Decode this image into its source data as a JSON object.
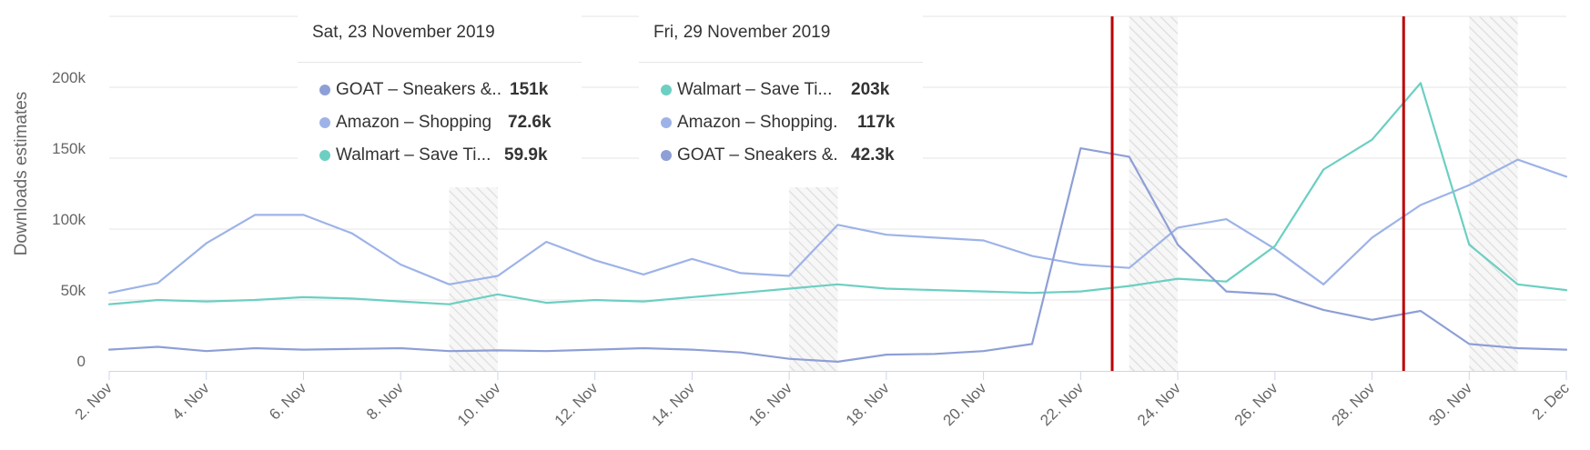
{
  "chart_data": {
    "type": "line",
    "title": "",
    "ylabel": "Downloads estimates",
    "xlabel": "",
    "x": [
      "2019-11-02",
      "2019-11-03",
      "2019-11-04",
      "2019-11-05",
      "2019-11-06",
      "2019-11-07",
      "2019-11-08",
      "2019-11-09",
      "2019-11-10",
      "2019-11-11",
      "2019-11-12",
      "2019-11-13",
      "2019-11-14",
      "2019-11-15",
      "2019-11-16",
      "2019-11-17",
      "2019-11-18",
      "2019-11-19",
      "2019-11-20",
      "2019-11-21",
      "2019-11-22",
      "2019-11-23",
      "2019-11-24",
      "2019-11-25",
      "2019-11-26",
      "2019-11-27",
      "2019-11-28",
      "2019-11-29",
      "2019-11-30",
      "2019-12-01",
      "2019-12-02"
    ],
    "x_tick_labels": [
      "2. Nov",
      "4. Nov",
      "6. Nov",
      "8. Nov",
      "10. Nov",
      "12. Nov",
      "14. Nov",
      "16. Nov",
      "18. Nov",
      "20. Nov",
      "22. Nov",
      "24. Nov",
      "26. Nov",
      "28. Nov",
      "30. Nov",
      "2. Dec"
    ],
    "y_tick_labels": [
      "0",
      "50k",
      "100k",
      "150k",
      "200k"
    ],
    "ylim": [
      0,
      250000
    ],
    "grid": true,
    "series": [
      {
        "name": "Amazon – Shopping",
        "color": "#9db3e8",
        "values": [
          55000,
          62000,
          90000,
          110000,
          110000,
          97000,
          75000,
          61000,
          67000,
          91000,
          78000,
          68000,
          79000,
          69000,
          67000,
          103000,
          96000,
          94000,
          92000,
          81000,
          75000,
          72600,
          101000,
          107000,
          86000,
          61000,
          94000,
          117000,
          131000,
          149000,
          137000
        ]
      },
      {
        "name": "Walmart – Save Time and Money",
        "color": "#6ccfc2",
        "values": [
          47000,
          50000,
          49000,
          50000,
          52000,
          51000,
          49000,
          47000,
          54000,
          48000,
          50000,
          49000,
          52000,
          55000,
          58000,
          61000,
          58000,
          57000,
          56000,
          55000,
          56000,
          59900,
          65000,
          63000,
          88000,
          142000,
          163000,
          203000,
          89000,
          61000,
          57000
        ]
      },
      {
        "name": "GOAT – Sneakers & Apparel",
        "color": "#8e9fd6",
        "values": [
          15000,
          17000,
          14000,
          16000,
          15000,
          15500,
          16000,
          14000,
          14500,
          14000,
          15000,
          16000,
          15000,
          13000,
          8500,
          6500,
          11500,
          12000,
          14000,
          19000,
          157000,
          151000,
          89000,
          56000,
          54000,
          43000,
          36000,
          42300,
          19000,
          16000,
          15000
        ]
      }
    ],
    "weekend_bands": [
      [
        "2019-11-09",
        "2019-11-10"
      ],
      [
        "2019-11-16",
        "2019-11-17"
      ],
      [
        "2019-11-23",
        "2019-11-24"
      ],
      [
        "2019-11-30",
        "2019-12-01"
      ]
    ],
    "markers": [
      "2019-11-23",
      "2019-11-29"
    ],
    "marker_color": "#bb0000"
  },
  "tooltips": [
    {
      "date": "Sat, 23 November 2019",
      "rows": [
        {
          "name": "GOAT – Sneakers &..",
          "value": "151k",
          "color": "#8e9fd6"
        },
        {
          "name": "Amazon – Shopping",
          "value": "72.6k",
          "color": "#9db3e8"
        },
        {
          "name": "Walmart – Save Ti...",
          "value": "59.9k",
          "color": "#6ccfc2"
        }
      ]
    },
    {
      "date": "Fri, 29 November 2019",
      "rows": [
        {
          "name": "Walmart – Save Ti...",
          "value": "203k",
          "color": "#6ccfc2"
        },
        {
          "name": "Amazon – Shopping.",
          "value": "117k",
          "color": "#9db3e8"
        },
        {
          "name": "GOAT – Sneakers &.",
          "value": "42.3k",
          "color": "#8e9fd6"
        }
      ]
    }
  ]
}
